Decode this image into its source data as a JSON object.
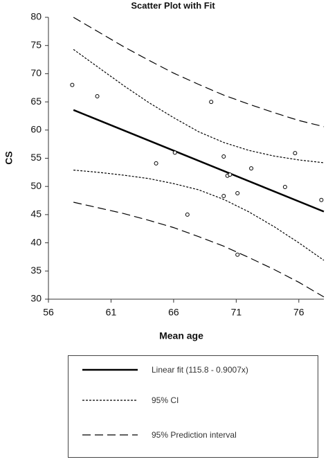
{
  "chart_data": {
    "type": "scatter",
    "title": "Scatter Plot with Fit",
    "x_label": "Mean age",
    "y_label": "CS",
    "xlim": [
      56,
      78
    ],
    "ylim": [
      30,
      80
    ],
    "xticks": [
      56,
      61,
      66,
      71,
      76
    ],
    "yticks": [
      30,
      35,
      40,
      45,
      50,
      55,
      60,
      65,
      70,
      75,
      80
    ],
    "color": "#000000",
    "points": {
      "x": [
        57.9,
        59.9,
        64.6,
        66.1,
        67.1,
        69.0,
        70.0,
        70.0,
        70.3,
        70.5,
        71.1,
        71.1,
        72.2,
        74.9,
        75.7,
        77.8
      ],
      "values": [
        68.0,
        66.0,
        54.1,
        56.0,
        45.0,
        65.0,
        55.3,
        48.3,
        51.9,
        52.1,
        48.8,
        37.9,
        53.2,
        49.9,
        55.9,
        47.6
      ]
    },
    "lines": [
      {
        "name": "Linear fit (115.8  - 0.9007x)",
        "style": "solid",
        "x": [
          58,
          78
        ],
        "values": [
          63.56,
          45.54
        ]
      },
      {
        "name": "95% CI",
        "style": "dotted",
        "x": [
          58,
          60,
          62,
          64,
          66,
          68,
          70,
          72,
          74,
          76,
          78
        ],
        "upper": [
          74.3,
          71.1,
          67.9,
          64.9,
          62.2,
          59.7,
          57.8,
          56.4,
          55.4,
          54.7,
          54.2
        ],
        "lower": [
          52.9,
          52.5,
          52.0,
          51.4,
          50.5,
          49.4,
          47.7,
          45.5,
          42.9,
          40.0,
          36.9
        ]
      },
      {
        "name": "95% Prediction interval",
        "style": "dashed",
        "x": [
          58,
          60,
          62,
          64,
          66,
          68,
          70,
          72,
          74,
          76,
          78
        ],
        "upper": [
          80.0,
          77.4,
          74.8,
          72.4,
          70.1,
          68.1,
          66.2,
          64.6,
          63.1,
          61.7,
          60.6
        ],
        "lower": [
          47.2,
          46.2,
          45.2,
          44.0,
          42.7,
          41.1,
          39.4,
          37.4,
          35.3,
          33.0,
          30.4
        ]
      }
    ]
  }
}
